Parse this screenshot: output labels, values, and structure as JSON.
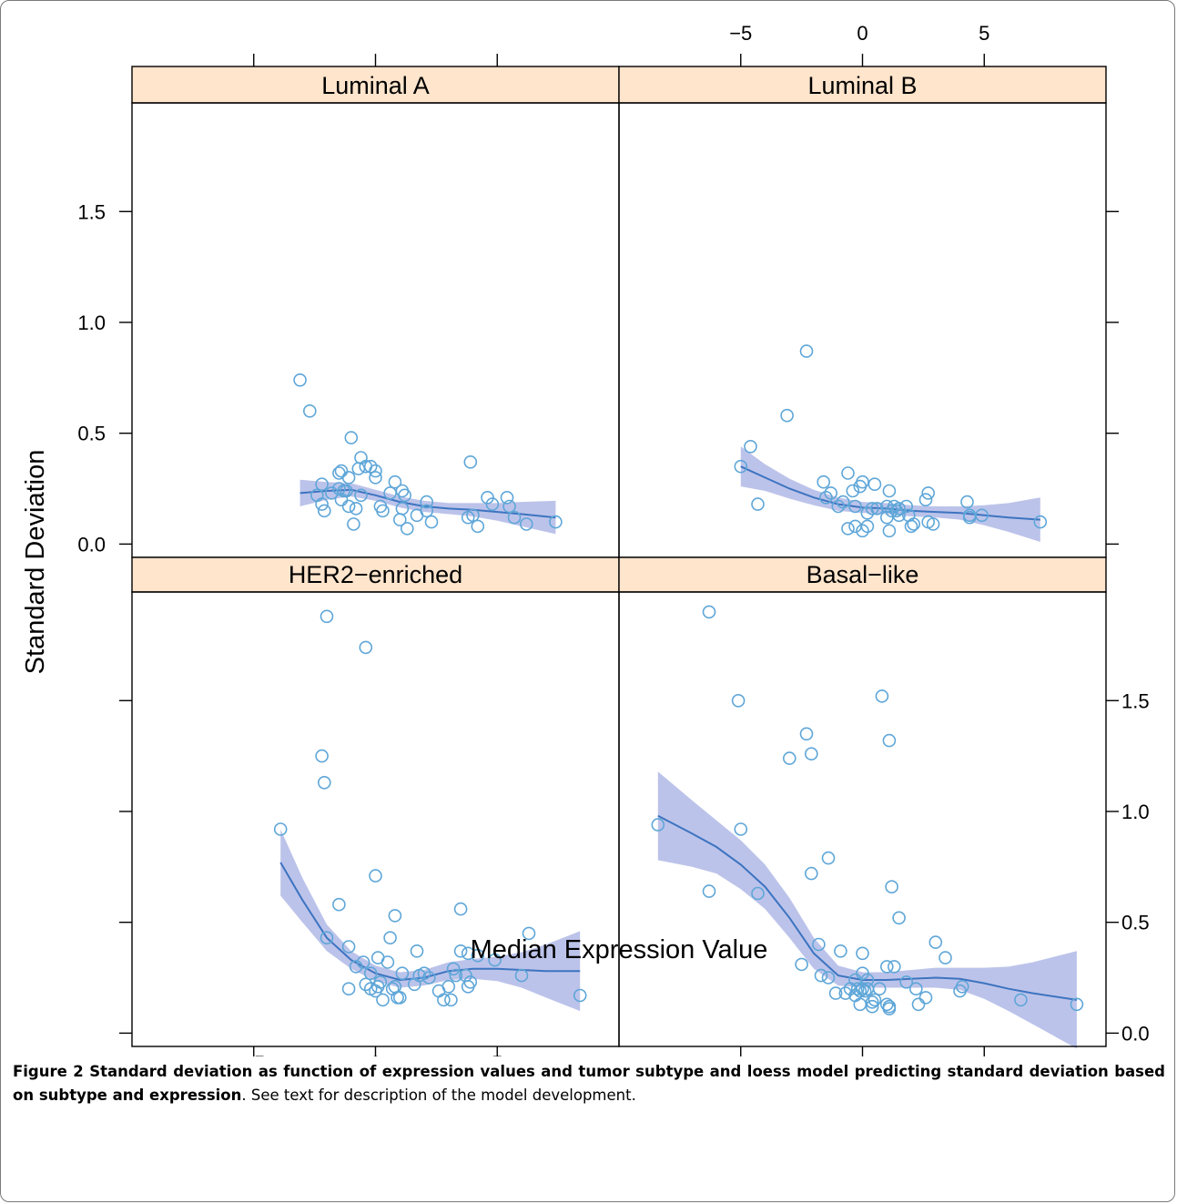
{
  "figure": {
    "caption_bold": "Figure 2 Standard deviation as function of expression values and tumor subtype and loess model predicting standard deviation based on subtype and expression",
    "caption_rest": ". See text for description of the model development."
  },
  "colors": {
    "strip_fill": "#ffe5cc",
    "points": "#5ea6d8",
    "fit_line": "#3d74c0",
    "band": "#b0b9e6"
  },
  "chart_data": {
    "type": "scatter",
    "title": "",
    "xlabel": "Median Expression Value",
    "ylabel": "Standard Deviation",
    "xlim": [
      -10,
      10
    ],
    "ylim": [
      -0.06,
      1.99
    ],
    "x_ticks": [
      "−5",
      "0",
      "5"
    ],
    "x_tick_values": [
      -5,
      0,
      5
    ],
    "y_ticks": [
      "0.0",
      "0.5",
      "1.0",
      "1.5"
    ],
    "y_tick_values": [
      0,
      0.5,
      1.0,
      1.5
    ],
    "legend": "none",
    "grid": false,
    "panels": [
      {
        "name": "Luminal A",
        "points": [
          [
            -3.1,
            0.74
          ],
          [
            -2.7,
            0.6
          ],
          [
            -1.0,
            0.48
          ],
          [
            -2.4,
            0.22
          ],
          [
            -2.2,
            0.27
          ],
          [
            -2.1,
            0.15
          ],
          [
            -2.2,
            0.18
          ],
          [
            -1.8,
            0.23
          ],
          [
            -1.5,
            0.32
          ],
          [
            -1.4,
            0.33
          ],
          [
            -1.5,
            0.25
          ],
          [
            -1.3,
            0.24
          ],
          [
            -1.1,
            0.3
          ],
          [
            -1.4,
            0.2
          ],
          [
            -1.2,
            0.24
          ],
          [
            -1.1,
            0.17
          ],
          [
            -0.9,
            0.09
          ],
          [
            -0.8,
            0.16
          ],
          [
            -0.7,
            0.34
          ],
          [
            -0.6,
            0.39
          ],
          [
            -0.4,
            0.35
          ],
          [
            -0.2,
            0.35
          ],
          [
            -0.6,
            0.22
          ],
          [
            0.0,
            0.3
          ],
          [
            0.0,
            0.33
          ],
          [
            0.2,
            0.17
          ],
          [
            0.3,
            0.15
          ],
          [
            0.6,
            0.23
          ],
          [
            0.8,
            0.28
          ],
          [
            1.0,
            0.11
          ],
          [
            1.1,
            0.24
          ],
          [
            1.1,
            0.16
          ],
          [
            1.2,
            0.22
          ],
          [
            1.3,
            0.07
          ],
          [
            1.7,
            0.13
          ],
          [
            2.1,
            0.19
          ],
          [
            2.1,
            0.15
          ],
          [
            2.3,
            0.1
          ],
          [
            3.8,
            0.12
          ],
          [
            3.9,
            0.37
          ],
          [
            4.0,
            0.13
          ],
          [
            4.2,
            0.08
          ],
          [
            4.6,
            0.21
          ],
          [
            4.8,
            0.18
          ],
          [
            5.4,
            0.21
          ],
          [
            5.5,
            0.17
          ],
          [
            5.7,
            0.12
          ],
          [
            6.2,
            0.09
          ],
          [
            7.4,
            0.1
          ]
        ],
        "fit_x": [
          -3.1,
          -2.0,
          -1.0,
          0.0,
          1.0,
          2.0,
          3.0,
          4.0,
          5.0,
          6.0,
          7.4
        ],
        "fit_y": [
          0.23,
          0.24,
          0.245,
          0.22,
          0.19,
          0.17,
          0.16,
          0.155,
          0.145,
          0.135,
          0.12
        ],
        "band_half": [
          0.06,
          0.04,
          0.03,
          0.025,
          0.025,
          0.025,
          0.025,
          0.03,
          0.04,
          0.055,
          0.075
        ]
      },
      {
        "name": "Luminal B",
        "points": [
          [
            -5.0,
            0.35
          ],
          [
            -4.6,
            0.44
          ],
          [
            -4.3,
            0.18
          ],
          [
            -3.1,
            0.58
          ],
          [
            -2.3,
            0.87
          ],
          [
            -1.6,
            0.28
          ],
          [
            -1.5,
            0.21
          ],
          [
            -1.3,
            0.23
          ],
          [
            -1.0,
            0.17
          ],
          [
            -0.8,
            0.19
          ],
          [
            -0.6,
            0.32
          ],
          [
            -0.6,
            0.07
          ],
          [
            -0.4,
            0.24
          ],
          [
            -0.3,
            0.17
          ],
          [
            -0.3,
            0.08
          ],
          [
            -0.1,
            0.26
          ],
          [
            0.0,
            0.28
          ],
          [
            0.0,
            0.06
          ],
          [
            0.2,
            0.14
          ],
          [
            0.2,
            0.08
          ],
          [
            0.4,
            0.16
          ],
          [
            0.5,
            0.27
          ],
          [
            0.6,
            0.16
          ],
          [
            1.0,
            0.17
          ],
          [
            1.0,
            0.12
          ],
          [
            1.1,
            0.24
          ],
          [
            1.1,
            0.06
          ],
          [
            1.2,
            0.15
          ],
          [
            1.3,
            0.17
          ],
          [
            1.4,
            0.15
          ],
          [
            1.5,
            0.16
          ],
          [
            1.5,
            0.13
          ],
          [
            1.8,
            0.17
          ],
          [
            1.9,
            0.13
          ],
          [
            2.0,
            0.08
          ],
          [
            2.1,
            0.09
          ],
          [
            2.6,
            0.2
          ],
          [
            2.7,
            0.23
          ],
          [
            2.7,
            0.1
          ],
          [
            2.9,
            0.09
          ],
          [
            4.3,
            0.19
          ],
          [
            4.4,
            0.12
          ],
          [
            4.4,
            0.13
          ],
          [
            4.9,
            0.13
          ],
          [
            7.3,
            0.1
          ]
        ],
        "fit_x": [
          -5.0,
          -4.0,
          -3.0,
          -2.0,
          -1.0,
          0.0,
          1.0,
          2.0,
          3.0,
          4.0,
          5.0,
          6.0,
          7.3
        ],
        "fit_y": [
          0.35,
          0.3,
          0.25,
          0.21,
          0.18,
          0.165,
          0.16,
          0.15,
          0.145,
          0.14,
          0.13,
          0.12,
          0.11
        ],
        "band_half": [
          0.09,
          0.06,
          0.045,
          0.035,
          0.03,
          0.025,
          0.025,
          0.025,
          0.025,
          0.03,
          0.045,
          0.065,
          0.1
        ]
      },
      {
        "name": "HER2−enriched",
        "points": [
          [
            -3.9,
            0.92
          ],
          [
            -2.0,
            1.88
          ],
          [
            -0.4,
            1.74
          ],
          [
            -2.2,
            1.25
          ],
          [
            -2.1,
            1.13
          ],
          [
            -1.5,
            0.58
          ],
          [
            -2.0,
            0.43
          ],
          [
            -1.1,
            0.39
          ],
          [
            -0.8,
            0.3
          ],
          [
            -1.1,
            0.2
          ],
          [
            -0.5,
            0.32
          ],
          [
            -0.4,
            0.22
          ],
          [
            -0.2,
            0.27
          ],
          [
            -0.2,
            0.2
          ],
          [
            0.0,
            0.71
          ],
          [
            0.0,
            0.19
          ],
          [
            0.1,
            0.21
          ],
          [
            0.1,
            0.34
          ],
          [
            0.2,
            0.23
          ],
          [
            0.3,
            0.15
          ],
          [
            0.5,
            0.32
          ],
          [
            0.6,
            0.43
          ],
          [
            0.7,
            0.2
          ],
          [
            0.8,
            0.53
          ],
          [
            0.8,
            0.21
          ],
          [
            0.9,
            0.16
          ],
          [
            1.0,
            0.16
          ],
          [
            1.1,
            0.27
          ],
          [
            1.6,
            0.22
          ],
          [
            1.7,
            0.37
          ],
          [
            1.8,
            0.26
          ],
          [
            2.0,
            0.27
          ],
          [
            2.2,
            0.25
          ],
          [
            2.6,
            0.19
          ],
          [
            2.8,
            0.15
          ],
          [
            3.0,
            0.21
          ],
          [
            3.1,
            0.15
          ],
          [
            3.2,
            0.29
          ],
          [
            3.3,
            0.26
          ],
          [
            3.5,
            0.37
          ],
          [
            3.5,
            0.56
          ],
          [
            3.7,
            0.26
          ],
          [
            3.8,
            0.36
          ],
          [
            3.8,
            0.21
          ],
          [
            3.9,
            0.23
          ],
          [
            4.2,
            0.35
          ],
          [
            4.9,
            0.33
          ],
          [
            6.0,
            0.26
          ],
          [
            6.3,
            0.45
          ],
          [
            8.4,
            0.17
          ]
        ],
        "fit_x": [
          -3.9,
          -3.0,
          -2.0,
          -1.0,
          0.0,
          1.0,
          2.0,
          3.0,
          4.0,
          5.0,
          6.0,
          7.0,
          8.4
        ],
        "fit_y": [
          0.77,
          0.6,
          0.43,
          0.33,
          0.27,
          0.24,
          0.25,
          0.28,
          0.29,
          0.29,
          0.285,
          0.28,
          0.28
        ],
        "band_half": [
          0.15,
          0.1,
          0.06,
          0.04,
          0.035,
          0.035,
          0.035,
          0.04,
          0.045,
          0.055,
          0.08,
          0.12,
          0.18
        ]
      },
      {
        "name": "Basal−like",
        "points": [
          [
            -8.4,
            0.94
          ],
          [
            -6.3,
            1.9
          ],
          [
            -6.3,
            0.64
          ],
          [
            -5.1,
            1.5
          ],
          [
            -5.0,
            0.92
          ],
          [
            -4.3,
            0.63
          ],
          [
            -3.0,
            1.24
          ],
          [
            -2.5,
            0.31
          ],
          [
            -2.3,
            1.35
          ],
          [
            -2.1,
            0.72
          ],
          [
            -2.1,
            1.26
          ],
          [
            -1.8,
            0.4
          ],
          [
            -1.7,
            0.26
          ],
          [
            -1.4,
            0.79
          ],
          [
            -1.4,
            0.25
          ],
          [
            -1.1,
            0.18
          ],
          [
            -0.9,
            0.37
          ],
          [
            -0.7,
            0.18
          ],
          [
            -0.5,
            0.2
          ],
          [
            -0.3,
            0.24
          ],
          [
            -0.3,
            0.17
          ],
          [
            -0.2,
            0.2
          ],
          [
            -0.1,
            0.19
          ],
          [
            -0.1,
            0.13
          ],
          [
            0.0,
            0.2
          ],
          [
            0.0,
            0.27
          ],
          [
            0.0,
            0.36
          ],
          [
            0.1,
            0.19
          ],
          [
            0.2,
            0.24
          ],
          [
            0.2,
            0.2
          ],
          [
            0.4,
            0.14
          ],
          [
            0.4,
            0.12
          ],
          [
            0.5,
            0.15
          ],
          [
            0.7,
            0.2
          ],
          [
            0.8,
            1.52
          ],
          [
            1.0,
            0.3
          ],
          [
            1.0,
            0.13
          ],
          [
            1.1,
            0.11
          ],
          [
            1.1,
            0.12
          ],
          [
            1.1,
            1.32
          ],
          [
            1.2,
            0.66
          ],
          [
            1.3,
            0.3
          ],
          [
            1.5,
            0.52
          ],
          [
            1.8,
            0.23
          ],
          [
            2.2,
            0.2
          ],
          [
            2.3,
            0.13
          ],
          [
            2.6,
            0.16
          ],
          [
            3.0,
            0.41
          ],
          [
            3.4,
            0.34
          ],
          [
            4.0,
            0.19
          ],
          [
            4.1,
            0.21
          ],
          [
            6.5,
            0.15
          ],
          [
            8.8,
            0.13
          ]
        ],
        "fit_x": [
          -8.4,
          -7.0,
          -6.0,
          -5.0,
          -4.0,
          -3.0,
          -2.0,
          -1.0,
          0.0,
          1.0,
          2.0,
          3.0,
          4.0,
          5.0,
          6.0,
          7.0,
          8.8
        ],
        "fit_y": [
          0.98,
          0.9,
          0.84,
          0.76,
          0.66,
          0.52,
          0.36,
          0.26,
          0.24,
          0.24,
          0.245,
          0.25,
          0.245,
          0.225,
          0.2,
          0.18,
          0.15
        ],
        "band_half": [
          0.2,
          0.15,
          0.12,
          0.11,
          0.1,
          0.09,
          0.07,
          0.045,
          0.035,
          0.035,
          0.04,
          0.045,
          0.05,
          0.07,
          0.1,
          0.14,
          0.22
        ]
      }
    ]
  }
}
